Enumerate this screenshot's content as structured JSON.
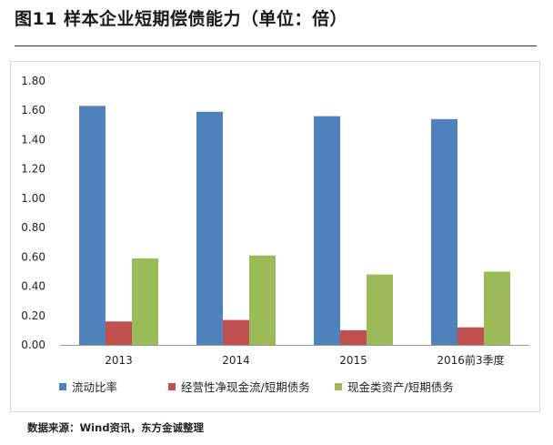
{
  "header": {
    "title": "图11  样本企业短期偿债能力（单位：倍）"
  },
  "footer": {
    "source": "数据来源：Wind资讯，东方金诚整理"
  },
  "chart_data": {
    "type": "bar",
    "categories": [
      "2013",
      "2014",
      "2015",
      "2016前3季度"
    ],
    "series": [
      {
        "name": "流动比率",
        "color": "#4f81bd",
        "values": [
          1.63,
          1.59,
          1.56,
          1.54
        ]
      },
      {
        "name": "经营性净现金流/短期债务",
        "color": "#c0504d",
        "values": [
          0.16,
          0.17,
          0.1,
          0.12
        ]
      },
      {
        "name": "现金类资产/短期债务",
        "color": "#9bbb59",
        "values": [
          0.59,
          0.61,
          0.48,
          0.5
        ]
      }
    ],
    "y_ticks": [
      "0.00",
      "0.20",
      "0.40",
      "0.60",
      "0.80",
      "1.00",
      "1.20",
      "1.40",
      "1.60",
      "1.80"
    ],
    "ylim": [
      0,
      1.8
    ],
    "grid": false,
    "legend_position": "bottom"
  }
}
